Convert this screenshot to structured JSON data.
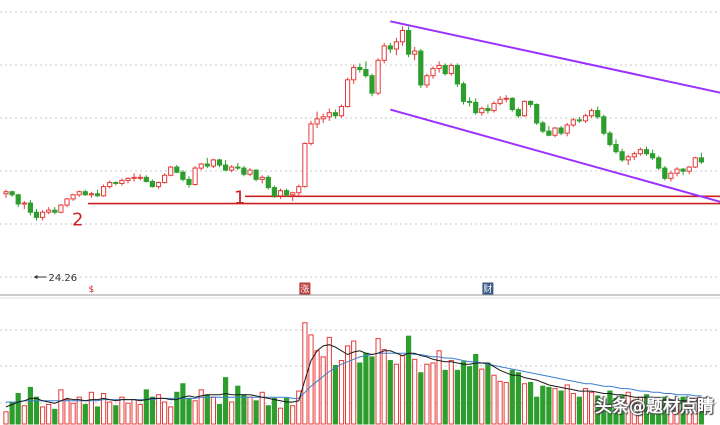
{
  "chart_data": {
    "type": "candlestick",
    "colors": {
      "up": "#e63a3a",
      "down": "#2d9e2d",
      "purple": "#9b30ff",
      "support": "#cc2222",
      "grid": "#c8c8c8",
      "ma_fast": "#1a1a1a",
      "ma_slow": "#3a7fcf"
    },
    "price_range": [
      18.5,
      44.8
    ],
    "volume_range": [
      0,
      100
    ],
    "low_annotation": "24.26",
    "support_labels": [
      {
        "text": "1",
        "price": 26.65
      },
      {
        "text": "2",
        "price": 25.95
      }
    ],
    "event_markers": [
      {
        "text": "$",
        "index": 14
      },
      {
        "text": "涨",
        "index": 49
      },
      {
        "text": "财",
        "index": 79
      }
    ],
    "channel": {
      "upper": {
        "start": [
          63,
          43.7
        ],
        "end": [
          119,
          36.5
        ]
      },
      "lower": {
        "start": [
          63,
          35.1
        ],
        "end": [
          119,
          25.8
        ]
      }
    },
    "candles": [
      [
        26.9,
        27.3,
        26.5,
        27.1
      ],
      [
        27.1,
        27.2,
        26.6,
        26.8
      ],
      [
        26.8,
        26.9,
        25.6,
        25.9
      ],
      [
        25.9,
        26.2,
        25.4,
        26.0
      ],
      [
        26.0,
        26.3,
        24.8,
        25.1
      ],
      [
        25.1,
        25.4,
        24.3,
        24.6
      ],
      [
        24.6,
        25.3,
        24.3,
        25.1
      ],
      [
        25.1,
        25.6,
        24.9,
        25.3
      ],
      [
        25.3,
        25.6,
        24.9,
        25.1
      ],
      [
        25.1,
        25.9,
        25.0,
        25.8
      ],
      [
        25.8,
        26.5,
        25.6,
        26.4
      ],
      [
        26.4,
        26.9,
        26.2,
        26.8
      ],
      [
        26.8,
        27.2,
        26.6,
        27.1
      ],
      [
        27.1,
        27.3,
        26.7,
        26.8
      ],
      [
        26.8,
        27.1,
        26.5,
        26.9
      ],
      [
        26.9,
        27.3,
        26.6,
        26.7
      ],
      [
        26.7,
        27.8,
        26.6,
        27.6
      ],
      [
        27.6,
        28.2,
        27.4,
        28.0
      ],
      [
        28.0,
        28.1,
        27.7,
        27.9
      ],
      [
        27.9,
        28.4,
        27.7,
        28.2
      ],
      [
        28.2,
        28.5,
        27.9,
        28.4
      ],
      [
        28.4,
        28.9,
        28.1,
        28.5
      ],
      [
        28.5,
        28.8,
        28.2,
        28.5
      ],
      [
        28.5,
        28.7,
        28.0,
        28.1
      ],
      [
        28.1,
        28.3,
        27.5,
        27.6
      ],
      [
        27.6,
        28.1,
        27.4,
        28.0
      ],
      [
        28.0,
        28.9,
        27.9,
        28.7
      ],
      [
        28.7,
        29.6,
        28.6,
        29.5
      ],
      [
        29.5,
        29.7,
        28.9,
        29.0
      ],
      [
        29.0,
        29.2,
        28.1,
        28.3
      ],
      [
        28.3,
        28.6,
        27.5,
        27.8
      ],
      [
        27.8,
        29.6,
        27.7,
        29.4
      ],
      [
        29.4,
        29.9,
        29.2,
        29.8
      ],
      [
        29.8,
        30.4,
        29.4,
        29.6
      ],
      [
        29.6,
        30.3,
        29.4,
        30.2
      ],
      [
        30.2,
        30.3,
        29.5,
        29.7
      ],
      [
        29.7,
        30.2,
        29.1,
        29.2
      ],
      [
        29.2,
        29.7,
        29.0,
        29.5
      ],
      [
        29.5,
        29.9,
        29.2,
        29.4
      ],
      [
        29.4,
        29.6,
        28.6,
        28.8
      ],
      [
        28.8,
        29.4,
        28.6,
        29.2
      ],
      [
        29.2,
        29.3,
        28.1,
        28.3
      ],
      [
        28.3,
        28.7,
        27.9,
        28.5
      ],
      [
        28.5,
        28.7,
        27.3,
        27.5
      ],
      [
        27.5,
        27.7,
        26.5,
        26.7
      ],
      [
        26.7,
        27.4,
        26.4,
        27.2
      ],
      [
        27.2,
        27.4,
        26.6,
        26.8
      ],
      [
        26.8,
        27.1,
        26.2,
        27.0
      ],
      [
        27.0,
        27.8,
        26.7,
        27.6
      ],
      [
        27.6,
        31.9,
        27.5,
        31.8
      ],
      [
        31.8,
        34.0,
        31.6,
        33.7
      ],
      [
        33.7,
        34.9,
        33.3,
        34.2
      ],
      [
        34.2,
        34.7,
        33.8,
        34.4
      ],
      [
        34.4,
        35.2,
        34.0,
        34.8
      ],
      [
        34.8,
        35.1,
        34.2,
        34.5
      ],
      [
        34.5,
        35.6,
        34.3,
        35.4
      ],
      [
        35.4,
        38.2,
        35.3,
        38.0
      ],
      [
        38.0,
        39.5,
        37.6,
        39.2
      ],
      [
        39.2,
        39.6,
        38.7,
        39.0
      ],
      [
        39.0,
        39.8,
        38.2,
        38.4
      ],
      [
        38.4,
        38.6,
        36.4,
        36.7
      ],
      [
        36.7,
        40.1,
        36.5,
        39.9
      ],
      [
        39.9,
        41.6,
        39.6,
        41.3
      ],
      [
        41.3,
        41.6,
        40.6,
        41.0
      ],
      [
        41.0,
        42.1,
        40.4,
        41.7
      ],
      [
        41.7,
        43.2,
        41.3,
        42.8
      ],
      [
        42.8,
        43.2,
        40.2,
        40.5
      ],
      [
        40.5,
        41.2,
        39.9,
        40.8
      ],
      [
        40.8,
        41.0,
        37.2,
        37.5
      ],
      [
        37.5,
        38.6,
        37.2,
        38.4
      ],
      [
        38.4,
        39.3,
        38.1,
        39.1
      ],
      [
        39.1,
        39.8,
        38.7,
        39.4
      ],
      [
        39.4,
        39.6,
        38.4,
        38.6
      ],
      [
        38.6,
        39.6,
        38.4,
        39.4
      ],
      [
        39.4,
        39.6,
        37.3,
        37.6
      ],
      [
        37.6,
        37.8,
        35.6,
        35.9
      ],
      [
        35.9,
        36.3,
        35.4,
        35.8
      ],
      [
        35.8,
        36.2,
        34.6,
        34.8
      ],
      [
        34.8,
        35.4,
        34.5,
        35.2
      ],
      [
        35.2,
        35.6,
        34.7,
        35.0
      ],
      [
        35.0,
        35.9,
        34.8,
        35.7
      ],
      [
        35.7,
        36.4,
        35.5,
        36.1
      ],
      [
        36.1,
        36.5,
        35.8,
        36.2
      ],
      [
        36.2,
        36.3,
        34.9,
        35.1
      ],
      [
        35.1,
        35.3,
        34.3,
        34.5
      ],
      [
        34.5,
        36.0,
        34.4,
        35.9
      ],
      [
        35.9,
        36.0,
        35.3,
        35.6
      ],
      [
        35.6,
        35.7,
        33.6,
        33.8
      ],
      [
        33.8,
        34.0,
        32.8,
        33.0
      ],
      [
        33.0,
        33.5,
        32.5,
        32.6
      ],
      [
        32.6,
        33.4,
        32.4,
        33.3
      ],
      [
        33.3,
        33.5,
        32.6,
        32.8
      ],
      [
        32.8,
        33.8,
        32.5,
        33.6
      ],
      [
        33.6,
        34.3,
        33.4,
        34.1
      ],
      [
        34.1,
        34.4,
        33.8,
        34.0
      ],
      [
        34.0,
        34.7,
        33.8,
        34.5
      ],
      [
        34.5,
        35.2,
        34.3,
        35.0
      ],
      [
        35.0,
        35.4,
        34.2,
        34.4
      ],
      [
        34.4,
        34.6,
        32.6,
        32.8
      ],
      [
        32.8,
        33.0,
        31.5,
        31.7
      ],
      [
        31.7,
        32.2,
        30.8,
        31.0
      ],
      [
        31.0,
        31.3,
        30.0,
        30.2
      ],
      [
        30.2,
        30.7,
        29.7,
        30.5
      ],
      [
        30.5,
        31.0,
        30.2,
        30.8
      ],
      [
        30.8,
        31.4,
        30.6,
        31.2
      ],
      [
        31.2,
        31.5,
        30.6,
        30.8
      ],
      [
        30.8,
        31.2,
        30.2,
        30.4
      ],
      [
        30.4,
        30.6,
        29.2,
        29.4
      ],
      [
        29.4,
        29.6,
        28.2,
        28.4
      ],
      [
        28.4,
        29.1,
        28.1,
        28.9
      ],
      [
        28.9,
        29.5,
        28.6,
        29.3
      ],
      [
        29.3,
        29.4,
        28.7,
        29.1
      ],
      [
        29.1,
        29.6,
        28.8,
        29.5
      ],
      [
        29.5,
        30.5,
        29.4,
        30.4
      ],
      [
        30.4,
        30.9,
        29.8,
        30.0
      ]
    ],
    "volumes": [
      10,
      18,
      25,
      15,
      30,
      22,
      14,
      16,
      12,
      28,
      20,
      17,
      22,
      16,
      26,
      14,
      25,
      18,
      15,
      22,
      17,
      20,
      16,
      28,
      22,
      24,
      18,
      14,
      26,
      33,
      21,
      19,
      28,
      24,
      22,
      16,
      38,
      18,
      31,
      24,
      22,
      19,
      26,
      15,
      21,
      13,
      21,
      15,
      27,
      83,
      73,
      60,
      55,
      71,
      48,
      52,
      64,
      68,
      50,
      58,
      55,
      70,
      61,
      52,
      49,
      56,
      72,
      53,
      42,
      49,
      50,
      60,
      44,
      52,
      44,
      51,
      47,
      57,
      45,
      50,
      40,
      35,
      34,
      44,
      42,
      33,
      34,
      22,
      31,
      30,
      29,
      27,
      32,
      25,
      22,
      29,
      26,
      23,
      20,
      27,
      21,
      23,
      26,
      19,
      22,
      24,
      21,
      16,
      22,
      19,
      18,
      22,
      17,
      21,
      14
    ],
    "ma_fast": [
      14,
      16,
      18,
      19,
      21,
      21,
      19,
      18,
      17,
      19,
      21,
      20,
      20,
      19,
      20,
      20,
      21,
      20,
      19,
      20,
      20,
      20,
      19,
      20,
      21,
      21,
      21,
      20,
      20,
      22,
      23,
      22,
      23,
      24,
      24,
      24,
      25,
      24,
      24,
      24,
      24,
      23,
      22,
      21,
      20,
      19,
      18,
      18,
      19,
      36,
      52,
      60,
      64,
      65,
      63,
      60,
      57,
      59,
      60,
      58,
      57,
      58,
      60,
      60,
      58,
      56,
      58,
      58,
      56,
      55,
      53,
      52,
      51,
      51,
      50,
      49,
      49,
      50,
      50,
      50,
      47,
      44,
      42,
      40,
      40,
      38,
      37,
      36,
      34,
      32,
      31,
      30,
      29,
      28,
      27,
      27,
      27,
      26,
      25,
      25,
      24,
      24,
      23,
      22,
      22,
      22,
      21,
      20,
      20,
      20,
      19,
      19,
      19,
      19,
      18
    ],
    "ma_slow": [
      18,
      18,
      18,
      19,
      19,
      19,
      19,
      19,
      19,
      19,
      19,
      19,
      19,
      19,
      19,
      19,
      20,
      20,
      20,
      20,
      20,
      20,
      20,
      20,
      20,
      21,
      21,
      21,
      21,
      21,
      21,
      21,
      22,
      22,
      22,
      22,
      22,
      22,
      22,
      22,
      22,
      22,
      22,
      22,
      22,
      22,
      22,
      21,
      21,
      26,
      31,
      35,
      39,
      43,
      46,
      49,
      51,
      53,
      55,
      56,
      57,
      58,
      58,
      58,
      58,
      58,
      58,
      57,
      57,
      56,
      55,
      55,
      54,
      54,
      53,
      52,
      51,
      51,
      50,
      49,
      48,
      47,
      46,
      45,
      44,
      43,
      42,
      41,
      40,
      39,
      38,
      37,
      36,
      35,
      34,
      33,
      33,
      32,
      31,
      31,
      30,
      29,
      29,
      28,
      27,
      27,
      26,
      26,
      25,
      25,
      24,
      24,
      24,
      23,
      23
    ]
  },
  "watermark": "头条@题材点睛"
}
